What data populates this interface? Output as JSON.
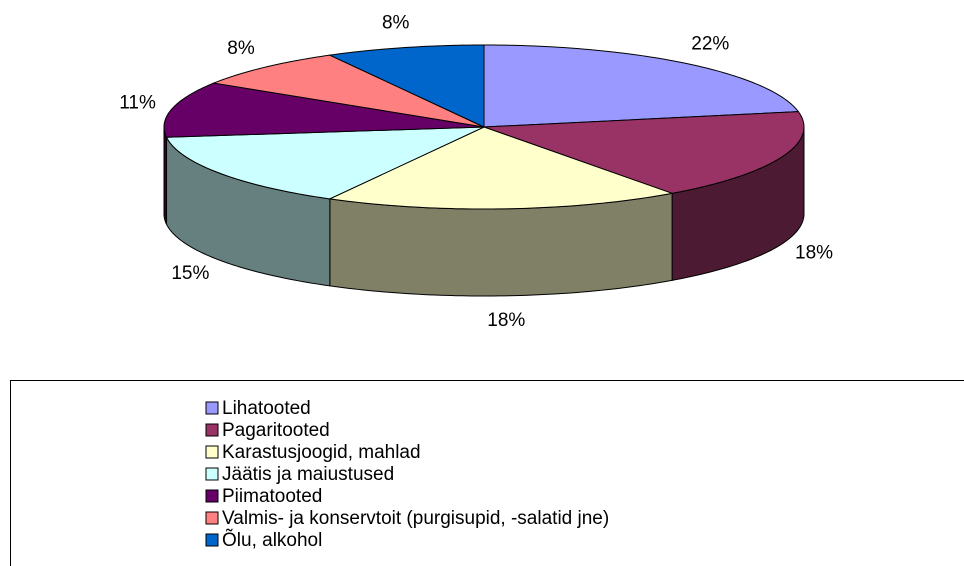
{
  "chart_data": {
    "type": "pie3d",
    "categories": [
      "Lihatooted",
      "Pagaritooted",
      "Karastusjoogid, mahlad",
      "Jäätis ja maiustused",
      "Piimatooted",
      "Valmis- ja konservtoit  (purgisupid, -salatid jne)",
      "Õlu, alkohol"
    ],
    "values": [
      22,
      18,
      18,
      15,
      11,
      8,
      8
    ],
    "value_labels": [
      "22%",
      "18%",
      "18%",
      "15%",
      "11%",
      "8%",
      "8%"
    ],
    "colors": [
      "#9999ff",
      "#993366",
      "#ffffcc",
      "#ccffff",
      "#660066",
      "#ff8080",
      "#0066cc"
    ]
  }
}
